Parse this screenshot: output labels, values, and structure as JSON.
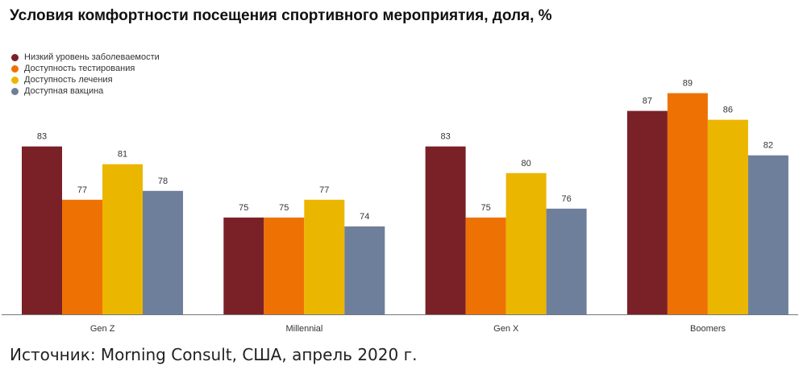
{
  "chart_data": {
    "type": "bar",
    "title": "Условия комфортности посещения спортивного мероприятия, доля, %",
    "categories": [
      "Gen Z",
      "Millennial",
      "Gen X",
      "Boomers"
    ],
    "series": [
      {
        "name": "Низкий уровень заболеваемости",
        "values": [
          83,
          75,
          83,
          87
        ],
        "color": "#7a2128"
      },
      {
        "name": "Доступность тестирования",
        "values": [
          77,
          75,
          75,
          89
        ],
        "color": "#ee7203"
      },
      {
        "name": "Доступность лечения",
        "values": [
          81,
          77,
          80,
          86
        ],
        "color": "#ebb600"
      },
      {
        "name": "Доступная вакцина",
        "values": [
          78,
          74,
          76,
          82
        ],
        "color": "#6e7f9c"
      }
    ],
    "xlabel": "",
    "ylabel": "",
    "ylim": [
      64.1,
      91.5
    ],
    "legend_position": "top-left",
    "grid": false,
    "data_labels": true
  },
  "source": "Источник: Morning Consult, США, апрель 2020 г."
}
